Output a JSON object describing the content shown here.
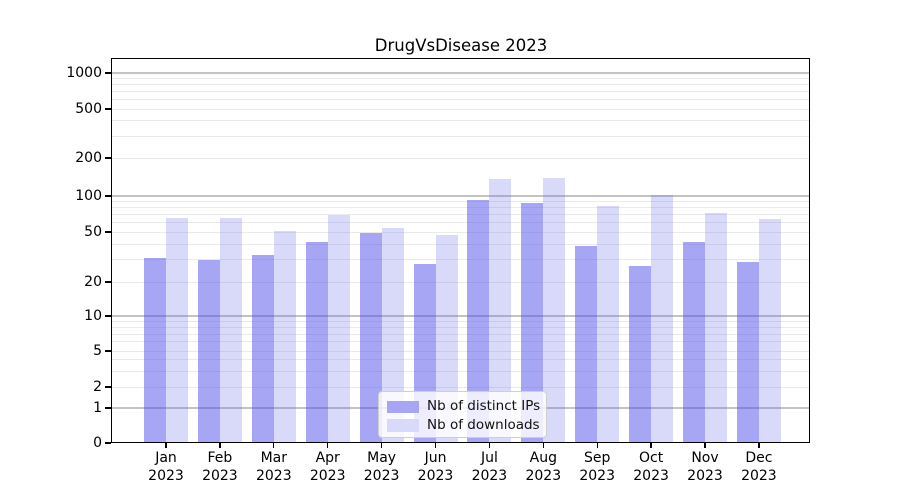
{
  "chart_data": {
    "type": "bar",
    "title": "DrugVsDisease 2023",
    "year_label": "2023",
    "categories": [
      "Jan",
      "Feb",
      "Mar",
      "Apr",
      "May",
      "Jun",
      "Jul",
      "Aug",
      "Sep",
      "Oct",
      "Nov",
      "Dec"
    ],
    "series": [
      {
        "name": "Nb of distinct IPs",
        "color": "#a6a6f4",
        "values": [
          31,
          30,
          33,
          42,
          49,
          28,
          93,
          87,
          39,
          27,
          42,
          29
        ]
      },
      {
        "name": "Nb of downloads",
        "color": "#d9d9f9",
        "values": [
          66,
          66,
          51,
          70,
          54,
          47,
          137,
          138,
          82,
          101,
          72,
          64
        ]
      }
    ],
    "xlabel": "",
    "ylabel": "",
    "yscale": "symlog",
    "yticks": [
      0,
      1,
      2,
      5,
      10,
      20,
      50,
      100,
      200,
      500,
      1000
    ],
    "ylim": [
      0,
      1300
    ],
    "grid": true,
    "legend_position": "lower center"
  },
  "legend": {
    "items": [
      {
        "label": "Nb of distinct IPs",
        "color": "#a6a6f4"
      },
      {
        "label": "Nb of downloads",
        "color": "#d9d9f9"
      }
    ]
  }
}
